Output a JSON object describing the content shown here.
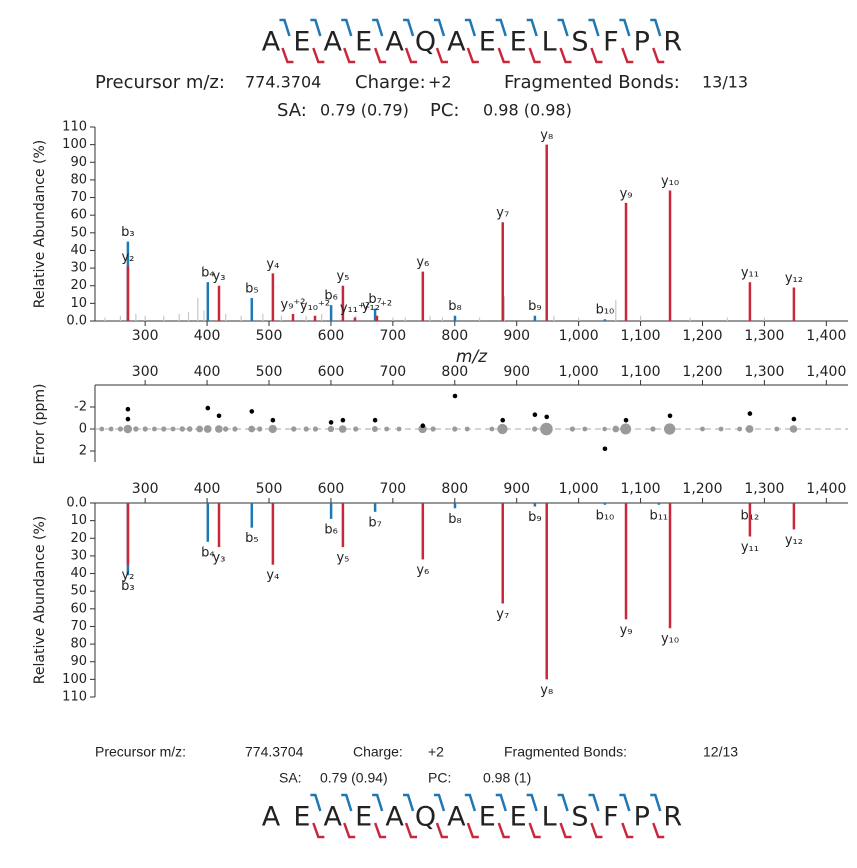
{
  "top_header": {
    "sequence": [
      "A",
      "E",
      "A",
      "E",
      "A",
      "Q",
      "A",
      "E",
      "E",
      "L",
      "S",
      "F",
      "P",
      "R"
    ],
    "b_marks": [
      true,
      true,
      true,
      true,
      true,
      true,
      true,
      true,
      true,
      true,
      true,
      true,
      true
    ],
    "y_marks": [
      true,
      true,
      true,
      true,
      true,
      true,
      true,
      true,
      true,
      true,
      true,
      true,
      true
    ],
    "precursor_label": "Precursor m/z:",
    "precursor_value": "774.3704",
    "charge_label": "Charge:",
    "charge_value": "+2",
    "bonds_label": "Fragmented Bonds:",
    "bonds_value": "13/13",
    "sa_label": "SA:",
    "sa_value": "0.79 (0.79)",
    "pc_label": "PC:",
    "pc_value": "0.98 (0.98)"
  },
  "bottom_header": {
    "sequence": [
      "A",
      "E",
      "A",
      "E",
      "A",
      "Q",
      "A",
      "E",
      "E",
      "L",
      "S",
      "F",
      "P",
      "R"
    ],
    "b_marks": [
      false,
      true,
      true,
      true,
      true,
      true,
      true,
      true,
      true,
      true,
      true,
      true,
      true
    ],
    "y_marks": [
      false,
      true,
      true,
      true,
      true,
      true,
      true,
      true,
      true,
      true,
      true,
      true,
      true
    ],
    "precursor_label": "Precursor m/z:",
    "precursor_value": "774.3704",
    "charge_label": "Charge:",
    "charge_value": "+2",
    "bonds_label": "Fragmented Bonds:",
    "bonds_value": "12/13",
    "sa_label": "SA:",
    "sa_value": "0.79 (0.94)",
    "pc_label": "PC:",
    "pc_value": "0.98 (1)"
  },
  "chart_data": [
    {
      "type": "spectrum",
      "ylabel": "Relative Abundance (%)",
      "xlabel": "m/z",
      "xaxis": "bottom",
      "y_inverted": false,
      "xlim": [
        219,
        1435
      ],
      "xticks": [
        300,
        400,
        500,
        600,
        700,
        800,
        900,
        {
          "value": 1000,
          "label": "1,000"
        },
        {
          "value": 1100,
          "label": "1,100"
        },
        {
          "value": 1200,
          "label": "1,200"
        },
        {
          "value": 1300,
          "label": "1,300"
        },
        {
          "value": 1400,
          "label": "1,400"
        }
      ],
      "ylim": [
        0,
        110
      ],
      "yticks": [
        {
          "value": 0,
          "label": "0.0"
        },
        10,
        20,
        30,
        40,
        50,
        60,
        70,
        80,
        90,
        100,
        110
      ],
      "series": [
        {
          "color": "#c8c8c8",
          "x": [
            235,
            260,
            285,
            300,
            330,
            355,
            370,
            385,
            395,
            430,
            455,
            490,
            520,
            560,
            585,
            640,
            700,
            720,
            760,
            780,
            840,
            880,
            960,
            1000,
            1060,
            1100,
            1180,
            1240,
            1300
          ],
          "values": [
            2,
            3,
            4,
            3,
            3,
            4,
            5,
            13,
            6,
            4,
            3,
            4,
            3,
            3,
            4,
            3,
            2,
            2,
            3,
            2,
            2,
            14,
            3,
            2,
            12,
            3,
            2,
            2,
            2
          ]
        },
        {
          "color": "#1f77b4",
          "x": [
            272.13,
            401.17,
            472.21,
            600.27,
            671.31,
            800.35,
            929.39,
            1042.47
          ],
          "values": [
            45,
            22,
            13,
            9,
            7,
            3,
            3,
            1
          ],
          "labels": [
            "b₃",
            "b₄",
            "b₅",
            "b₆",
            "b₇",
            "b₈",
            "b₉",
            "b₁₀"
          ]
        },
        {
          "color": "#c9283a",
          "x": [
            272.17,
            419.24,
            506.27,
            538.77,
            574.29,
            619.35,
            638.81,
            674.33,
            748.39,
            877.43,
            948.47,
            1076.53,
            1147.57,
            1276.61,
            1347.65
          ],
          "values": [
            31,
            20,
            27,
            4,
            3,
            20,
            2,
            3,
            28,
            56,
            100,
            67,
            74,
            22,
            19
          ],
          "labels": [
            "y₂",
            "y₃",
            "y₄",
            "y₉⁺²",
            "y₁₀⁺²",
            "y₅",
            "y₁₁⁺²",
            "y₁₂⁺²",
            "y₆",
            "y₇",
            "y₈",
            "y₉",
            "y₁₀",
            "y₁₁",
            "y₁₂"
          ]
        }
      ]
    },
    {
      "type": "scatter",
      "ylabel": "Error (ppm)",
      "xaxis": "top",
      "y_inverted": true,
      "zero_line": true,
      "xlim": [
        219,
        1435
      ],
      "xticks": [
        300,
        400,
        500,
        600,
        700,
        800,
        900,
        {
          "value": 1000,
          "label": "1,000"
        },
        {
          "value": 1100,
          "label": "1,100"
        },
        {
          "value": 1200,
          "label": "1,200"
        },
        {
          "value": 1300,
          "label": "1,300"
        },
        {
          "value": 1400,
          "label": "1,400"
        }
      ],
      "ylim": [
        -4,
        3
      ],
      "yticks": [
        -2,
        0,
        2
      ],
      "series": [
        {
          "color": "#9a9a9a",
          "x": [
            230,
            245,
            260,
            272,
            285,
            300,
            315,
            330,
            345,
            360,
            372,
            388,
            401,
            419,
            430,
            445,
            472,
            485,
            506,
            540,
            560,
            575,
            600,
            619,
            640,
            671,
            690,
            710,
            748,
            765,
            800,
            820,
            860,
            877,
            929,
            948,
            990,
            1010,
            1042,
            1060,
            1076,
            1120,
            1147,
            1200,
            1230,
            1260,
            1276,
            1320,
            1347
          ],
          "values": [
            0,
            0,
            0,
            0,
            0,
            0,
            0,
            0,
            0,
            0,
            0,
            0,
            0,
            0,
            0,
            0,
            0,
            0,
            0,
            0,
            0,
            0,
            0,
            0,
            0,
            0,
            0,
            0,
            0,
            0,
            0,
            0,
            0,
            0,
            0,
            0,
            0,
            0,
            0,
            0,
            0,
            0,
            0,
            0,
            0,
            0,
            0,
            0,
            0
          ],
          "sizes": [
            2,
            2,
            3,
            31,
            4,
            3,
            2,
            3,
            2,
            4,
            5,
            13,
            22,
            20,
            4,
            3,
            13,
            3,
            27,
            4,
            3,
            3,
            9,
            20,
            3,
            7,
            2,
            2,
            28,
            3,
            3,
            2,
            2,
            56,
            3,
            100,
            3,
            2,
            1,
            12,
            67,
            3,
            74,
            2,
            2,
            2,
            22,
            2,
            19
          ]
        },
        {
          "color": "#000000",
          "x": [
            272.13,
            272.17,
            401.17,
            419.24,
            472.21,
            506.27,
            600.27,
            619.35,
            671.31,
            748.39,
            800.35,
            877.43,
            929.39,
            948.47,
            1042.47,
            1076.53,
            1147.57,
            1276.61,
            1347.65
          ],
          "values": [
            -1.8,
            -0.9,
            -1.9,
            -1.2,
            -1.6,
            -0.8,
            -0.6,
            -0.8,
            -0.8,
            -0.3,
            -3,
            -0.8,
            -1.3,
            -1.1,
            1.8,
            -0.8,
            -1.2,
            -1.4,
            -0.9
          ]
        }
      ]
    },
    {
      "type": "spectrum",
      "ylabel": "Relative Abundance (%)",
      "xaxis": "top",
      "y_inverted": true,
      "xlim": [
        219,
        1435
      ],
      "xticks": [
        300,
        400,
        500,
        600,
        700,
        800,
        900,
        {
          "value": 1000,
          "label": "1,000"
        },
        {
          "value": 1100,
          "label": "1,100"
        },
        {
          "value": 1200,
          "label": "1,200"
        },
        {
          "value": 1300,
          "label": "1,300"
        },
        {
          "value": 1400,
          "label": "1,400"
        }
      ],
      "ylim": [
        0,
        110
      ],
      "yticks": [
        {
          "value": 0,
          "label": "0.0"
        },
        10,
        20,
        30,
        40,
        50,
        60,
        70,
        80,
        90,
        100,
        110
      ],
      "series": [
        {
          "color": "#1f77b4",
          "x": [
            272.13,
            401.17,
            472.21,
            600.27,
            671.31,
            800.35,
            929.39,
            1042.47,
            1129.5,
            1276.57
          ],
          "values": [
            41,
            22,
            14,
            9,
            5,
            3,
            2,
            1,
            1,
            1
          ],
          "labels": [
            "b₃",
            "b₄",
            "b₅",
            "b₆",
            "b₇",
            "b₈",
            "b₉",
            "b₁₀",
            "b₁₁",
            "b₁₂"
          ]
        },
        {
          "color": "#c9283a",
          "x": [
            272.17,
            419.24,
            506.27,
            619.35,
            748.39,
            877.43,
            948.47,
            1076.53,
            1147.57,
            1276.61,
            1347.65
          ],
          "values": [
            35,
            25,
            35,
            25,
            32,
            57,
            100,
            66,
            71,
            19,
            15
          ],
          "labels": [
            "y₂",
            "y₃",
            "y₄",
            "y₅",
            "y₆",
            "y₇",
            "y₈",
            "y₉",
            "y₁₀",
            "y₁₁",
            "y₁₂"
          ]
        }
      ]
    }
  ]
}
